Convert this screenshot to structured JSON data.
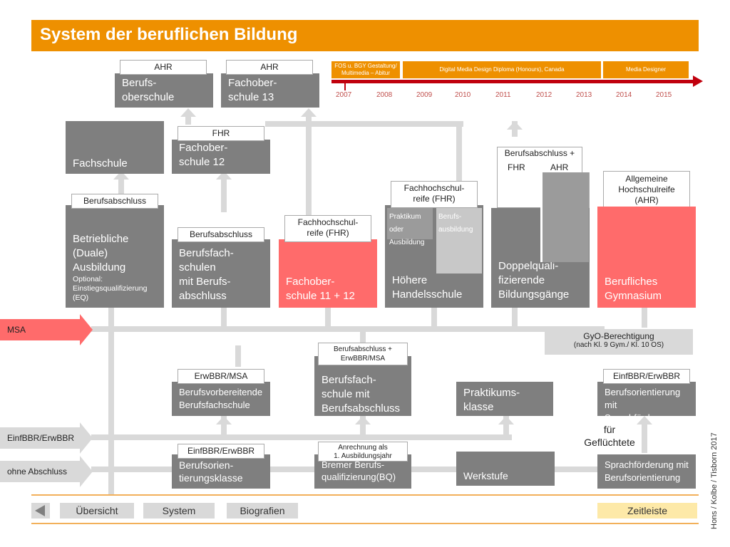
{
  "header": {
    "title": "System der beruflichen Bildung"
  },
  "top_schools": [
    {
      "label": "AHR",
      "name": "Berufs-\noberschule"
    },
    {
      "label": "AHR",
      "name": "Fachober-\nschule 13"
    }
  ],
  "timeline": {
    "segments": [
      "FOS u. BGY Gestaltung/ Multimedia – Abitur",
      "Digital Media Design Diploma (Honours), Canada",
      "Media Designer"
    ],
    "years": [
      "2007",
      "2008",
      "2009",
      "2010",
      "2011",
      "2012",
      "2013",
      "2014",
      "2015"
    ],
    "colors": {
      "past": "#ee9000",
      "current": "#c0000d"
    }
  },
  "row2": {
    "fachschule": "Fachschule",
    "fos12_label": "FHR",
    "fos12_name": "Fachober-\nschule 12",
    "dq_label_line1": "Berufsabschluss +",
    "dq_label_fhr": "FHR",
    "dq_label_ahr": "AHR",
    "ahr_label": "Allgemeine Hochschulreife (AHR)"
  },
  "row3": {
    "duale_label": "Berufsabschluss",
    "duale_name": "Betriebliche\n(Duale)\nAusbildung",
    "duale_sub": "Optional:\nEinstiegsqualifizierung\n(EQ)",
    "bfs_label": "Berufsabschluss",
    "bfs_name": "Berufsfach-\nschulen\nmit Berufs-\nabschluss",
    "fos1112_label": "Fachhochschul-\nreife (FHR)",
    "fos1112_name": "Fachober-\nschule 11 + 12",
    "hhs_label": "Fachhochschul-\nreife (FHR)",
    "hhs_sub1": "Praktikum\noder\nAusbildung",
    "hhs_sub2": "Berufs-\nausbildung",
    "hhs_name": "Höhere\nHandelsschule",
    "dq_name": "Doppelquali-\nfizierende\nBildungsgänge",
    "bg_name": "Berufliches\nGymnasium"
  },
  "entries": {
    "msa": "MSA",
    "einf": "EinfBBR/ErwBBR",
    "ohne": "ohne Abschluss"
  },
  "gyo": {
    "title": "GyO-Berechtigung",
    "sub": "(nach Kl. 9 Gym./  Kl. 10 OS)"
  },
  "row4": {
    "bvs_label": "ErwBBR/MSA",
    "bvs_name": "Berufsvorbereitende\nBerufsfachschule",
    "bfs2_label": "Berufsabschluss +\nErwBBR/MSA",
    "bfs2_name": "Berufsfach-\nschule mit\nBerufsabschluss",
    "prak_name": "Praktikums-\nklasse",
    "bos_label": "EinfBBR/ErwBBR",
    "bos_name": "Berufsorientierung mit\nSprachförderung",
    "gefl": "für\nGeflüchtete"
  },
  "row5": {
    "bok_label": "EinfBBR/ErwBBR",
    "bok_name": "Berufsorien-\ntierungsklasse",
    "bq_label": "Anrechnung als\n1. Ausbildungsjahr",
    "bq_name": "Bremer Berufs-\nqualifizierung(BQ)",
    "werk_name": "Werkstufe",
    "spr_name": "Sprachförderung mit\nBerufsorientierung"
  },
  "nav": {
    "buttons": [
      "Übersicht",
      "System",
      "Biografien"
    ],
    "zeitleiste": "Zeitleiste",
    "zeitleiste_color": "#fde9a8"
  },
  "credit": "Hons / Kolbe / Tisborn 2017"
}
